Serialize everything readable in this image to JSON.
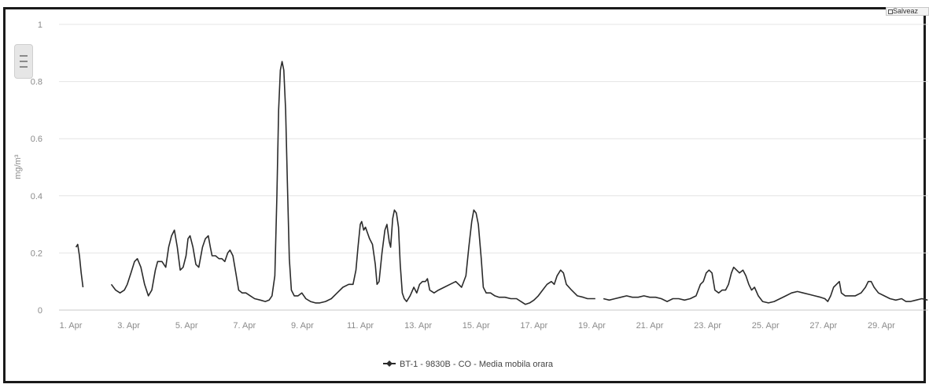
{
  "export_label": "Salveaz",
  "chart_data": {
    "type": "line",
    "title": "",
    "xlabel": "",
    "ylabel": "mg/m³",
    "ylim": [
      0,
      1
    ],
    "yticks": [
      "0",
      "0.2",
      "0.4",
      "0.6",
      "0.8",
      "1"
    ],
    "yticks_values": [
      0,
      0.2,
      0.4,
      0.6,
      0.8,
      1
    ],
    "xlim": [
      1.0,
      30.6
    ],
    "xticks": [
      {
        "label": "1. Apr",
        "day": 1
      },
      {
        "label": "3. Apr",
        "day": 3
      },
      {
        "label": "5. Apr",
        "day": 5
      },
      {
        "label": "7. Apr",
        "day": 7
      },
      {
        "label": "9. Apr",
        "day": 9
      },
      {
        "label": "11. Apr",
        "day": 11
      },
      {
        "label": "13. Apr",
        "day": 13
      },
      {
        "label": "15. Apr",
        "day": 15
      },
      {
        "label": "17. Apr",
        "day": 17
      },
      {
        "label": "19. Apr",
        "day": 19
      },
      {
        "label": "21. Apr",
        "day": 21
      },
      {
        "label": "23. Apr",
        "day": 23
      },
      {
        "label": "25. Apr",
        "day": 25
      },
      {
        "label": "27. Apr",
        "day": 27
      },
      {
        "label": "29. Apr",
        "day": 29
      }
    ],
    "grid": true,
    "legend_position": "bottom-center",
    "series": [
      {
        "name": "BT-1 - 9830B - CO - Media mobila orara",
        "color": "#2b2b2b",
        "segments": [
          [
            [
              1.18,
              0.22
            ],
            [
              1.24,
              0.23
            ],
            [
              1.3,
              0.19
            ],
            [
              1.36,
              0.13
            ],
            [
              1.42,
              0.08
            ]
          ],
          [
            [
              2.4,
              0.09
            ],
            [
              2.55,
              0.07
            ],
            [
              2.7,
              0.06
            ],
            [
              2.85,
              0.07
            ],
            [
              2.95,
              0.09
            ],
            [
              3.08,
              0.13
            ],
            [
              3.2,
              0.17
            ],
            [
              3.3,
              0.18
            ],
            [
              3.42,
              0.15
            ],
            [
              3.55,
              0.09
            ],
            [
              3.68,
              0.05
            ],
            [
              3.8,
              0.07
            ],
            [
              3.92,
              0.14
            ],
            [
              4.0,
              0.17
            ],
            [
              4.15,
              0.17
            ],
            [
              4.28,
              0.15
            ],
            [
              4.38,
              0.22
            ],
            [
              4.48,
              0.26
            ],
            [
              4.58,
              0.28
            ],
            [
              4.68,
              0.22
            ],
            [
              4.78,
              0.14
            ],
            [
              4.88,
              0.15
            ],
            [
              4.98,
              0.19
            ],
            [
              5.05,
              0.25
            ],
            [
              5.12,
              0.26
            ],
            [
              5.22,
              0.22
            ],
            [
              5.32,
              0.16
            ],
            [
              5.42,
              0.15
            ],
            [
              5.55,
              0.22
            ],
            [
              5.65,
              0.25
            ],
            [
              5.75,
              0.26
            ],
            [
              5.82,
              0.22
            ],
            [
              5.88,
              0.19
            ],
            [
              6.0,
              0.19
            ],
            [
              6.12,
              0.18
            ],
            [
              6.22,
              0.18
            ],
            [
              6.32,
              0.17
            ],
            [
              6.42,
              0.2
            ],
            [
              6.5,
              0.21
            ],
            [
              6.6,
              0.19
            ],
            [
              6.7,
              0.13
            ],
            [
              6.8,
              0.07
            ],
            [
              6.92,
              0.06
            ],
            [
              7.05,
              0.06
            ],
            [
              7.2,
              0.05
            ],
            [
              7.35,
              0.04
            ],
            [
              7.55,
              0.035
            ],
            [
              7.72,
              0.03
            ],
            [
              7.85,
              0.035
            ],
            [
              7.95,
              0.05
            ],
            [
              8.05,
              0.12
            ],
            [
              8.12,
              0.4
            ],
            [
              8.18,
              0.7
            ],
            [
              8.24,
              0.84
            ],
            [
              8.3,
              0.87
            ],
            [
              8.36,
              0.84
            ],
            [
              8.42,
              0.7
            ],
            [
              8.48,
              0.45
            ],
            [
              8.55,
              0.18
            ],
            [
              8.62,
              0.07
            ],
            [
              8.72,
              0.05
            ],
            [
              8.85,
              0.05
            ],
            [
              8.98,
              0.06
            ],
            [
              9.12,
              0.04
            ],
            [
              9.28,
              0.03
            ],
            [
              9.45,
              0.025
            ],
            [
              9.6,
              0.025
            ],
            [
              9.8,
              0.03
            ],
            [
              10.0,
              0.04
            ],
            [
              10.2,
              0.06
            ],
            [
              10.4,
              0.08
            ],
            [
              10.6,
              0.09
            ],
            [
              10.75,
              0.09
            ],
            [
              10.85,
              0.14
            ],
            [
              10.92,
              0.22
            ],
            [
              11.0,
              0.3
            ],
            [
              11.05,
              0.31
            ],
            [
              11.12,
              0.28
            ],
            [
              11.18,
              0.29
            ],
            [
              11.25,
              0.27
            ],
            [
              11.32,
              0.25
            ],
            [
              11.42,
              0.23
            ],
            [
              11.52,
              0.16
            ],
            [
              11.58,
              0.09
            ],
            [
              11.65,
              0.1
            ],
            [
              11.75,
              0.2
            ],
            [
              11.85,
              0.28
            ],
            [
              11.92,
              0.3
            ],
            [
              12.0,
              0.24
            ],
            [
              12.05,
              0.22
            ],
            [
              12.12,
              0.32
            ],
            [
              12.18,
              0.35
            ],
            [
              12.25,
              0.34
            ],
            [
              12.32,
              0.29
            ],
            [
              12.38,
              0.16
            ],
            [
              12.45,
              0.06
            ],
            [
              12.52,
              0.04
            ],
            [
              12.6,
              0.03
            ],
            [
              12.72,
              0.05
            ],
            [
              12.85,
              0.08
            ],
            [
              12.95,
              0.06
            ],
            [
              13.05,
              0.09
            ],
            [
              13.15,
              0.1
            ],
            [
              13.25,
              0.1
            ],
            [
              13.32,
              0.11
            ],
            [
              13.4,
              0.07
            ],
            [
              13.55,
              0.06
            ],
            [
              13.7,
              0.07
            ],
            [
              13.9,
              0.08
            ],
            [
              14.1,
              0.09
            ],
            [
              14.3,
              0.1
            ],
            [
              14.5,
              0.08
            ],
            [
              14.65,
              0.12
            ],
            [
              14.75,
              0.22
            ],
            [
              14.85,
              0.31
            ],
            [
              14.92,
              0.35
            ],
            [
              15.0,
              0.34
            ],
            [
              15.08,
              0.3
            ],
            [
              15.18,
              0.18
            ],
            [
              15.25,
              0.08
            ],
            [
              15.35,
              0.06
            ],
            [
              15.5,
              0.06
            ],
            [
              15.65,
              0.05
            ],
            [
              15.8,
              0.045
            ],
            [
              16.0,
              0.045
            ],
            [
              16.2,
              0.04
            ],
            [
              16.4,
              0.04
            ],
            [
              16.55,
              0.03
            ],
            [
              16.7,
              0.02
            ],
            [
              16.85,
              0.025
            ],
            [
              17.0,
              0.035
            ],
            [
              17.15,
              0.05
            ],
            [
              17.3,
              0.07
            ],
            [
              17.45,
              0.09
            ],
            [
              17.6,
              0.1
            ],
            [
              17.7,
              0.09
            ],
            [
              17.8,
              0.12
            ],
            [
              17.92,
              0.14
            ],
            [
              18.02,
              0.13
            ],
            [
              18.12,
              0.09
            ],
            [
              18.3,
              0.07
            ],
            [
              18.5,
              0.05
            ],
            [
              18.7,
              0.045
            ],
            [
              18.85,
              0.04
            ],
            [
              19.0,
              0.04
            ],
            [
              19.12,
              0.04
            ]
          ],
          [
            [
              19.4,
              0.04
            ],
            [
              19.6,
              0.035
            ],
            [
              19.8,
              0.04
            ],
            [
              20.0,
              0.045
            ],
            [
              20.2,
              0.05
            ],
            [
              20.4,
              0.045
            ],
            [
              20.6,
              0.045
            ],
            [
              20.8,
              0.05
            ],
            [
              21.0,
              0.045
            ],
            [
              21.2,
              0.045
            ],
            [
              21.4,
              0.04
            ],
            [
              21.6,
              0.03
            ],
            [
              21.8,
              0.04
            ],
            [
              22.0,
              0.04
            ],
            [
              22.2,
              0.035
            ],
            [
              22.4,
              0.04
            ],
            [
              22.6,
              0.05
            ],
            [
              22.75,
              0.09
            ],
            [
              22.85,
              0.1
            ],
            [
              22.95,
              0.13
            ],
            [
              23.05,
              0.14
            ],
            [
              23.15,
              0.13
            ],
            [
              23.25,
              0.07
            ],
            [
              23.38,
              0.06
            ],
            [
              23.5,
              0.07
            ],
            [
              23.62,
              0.07
            ],
            [
              23.72,
              0.09
            ],
            [
              23.82,
              0.13
            ],
            [
              23.9,
              0.15
            ],
            [
              24.0,
              0.14
            ],
            [
              24.1,
              0.13
            ],
            [
              24.22,
              0.14
            ],
            [
              24.32,
              0.12
            ],
            [
              24.42,
              0.09
            ],
            [
              24.52,
              0.07
            ],
            [
              24.62,
              0.08
            ],
            [
              24.75,
              0.05
            ],
            [
              24.9,
              0.03
            ],
            [
              25.1,
              0.025
            ],
            [
              25.3,
              0.03
            ],
            [
              25.5,
              0.04
            ],
            [
              25.7,
              0.05
            ],
            [
              25.9,
              0.06
            ],
            [
              26.1,
              0.065
            ],
            [
              26.3,
              0.06
            ],
            [
              26.5,
              0.055
            ],
            [
              26.7,
              0.05
            ],
            [
              26.9,
              0.045
            ],
            [
              27.05,
              0.04
            ],
            [
              27.15,
              0.03
            ],
            [
              27.25,
              0.05
            ],
            [
              27.35,
              0.08
            ],
            [
              27.45,
              0.09
            ],
            [
              27.55,
              0.1
            ],
            [
              27.62,
              0.06
            ],
            [
              27.75,
              0.05
            ],
            [
              27.9,
              0.05
            ],
            [
              28.1,
              0.05
            ],
            [
              28.3,
              0.06
            ],
            [
              28.45,
              0.08
            ],
            [
              28.55,
              0.1
            ],
            [
              28.65,
              0.1
            ],
            [
              28.75,
              0.08
            ],
            [
              28.9,
              0.06
            ],
            [
              29.1,
              0.05
            ],
            [
              29.3,
              0.04
            ],
            [
              29.5,
              0.035
            ],
            [
              29.7,
              0.04
            ],
            [
              29.85,
              0.03
            ],
            [
              30.0,
              0.03
            ],
            [
              30.2,
              0.035
            ],
            [
              30.4,
              0.04
            ],
            [
              30.6,
              0.035
            ]
          ]
        ]
      }
    ]
  }
}
